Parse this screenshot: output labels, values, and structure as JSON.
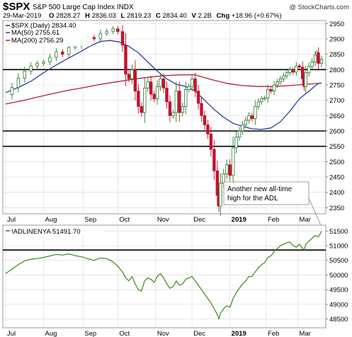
{
  "header": {
    "symbol": "$SPX",
    "name": "S&P 500 Large Cap Index",
    "exchange": "INDX",
    "date": "29-Mar-2019",
    "o_label": "O",
    "o_value": "2828.27",
    "h_label": "H",
    "h_value": "2836.03",
    "l_label": "L",
    "l_value": "2819.23",
    "c_label": "C",
    "c_value": "2834.40",
    "v_label": "V",
    "v_value": "2.2B",
    "chg_label": "Chg",
    "chg_value": "+18.96 (+0.67%)",
    "credit": "@ StockCharts.com"
  },
  "colors": {
    "up": "#2a7a2a",
    "down": "#c4122f",
    "ma50": "#2b3fa0",
    "ma200": "#b02040",
    "adl": "#3a8a1c",
    "hline": "#000000",
    "grid": "#d8d8d8"
  },
  "chart_data": [
    {
      "type": "candlestick",
      "series_label": "$SPX (Daily)",
      "series_value": "2834.40",
      "ylim": [
        2330,
        2960
      ],
      "yticks": [
        2350,
        2400,
        2450,
        2500,
        2550,
        2600,
        2650,
        2700,
        2750,
        2800,
        2850,
        2900,
        2950
      ],
      "xlim": [
        0,
        1
      ],
      "x_labels": [
        {
          "label": "Jul",
          "pos": 0.0
        },
        {
          "label": "Aug",
          "pos": 0.12
        },
        {
          "label": "Sep",
          "pos": 0.245
        },
        {
          "label": "Oct",
          "pos": 0.355
        },
        {
          "label": "Nov",
          "pos": 0.475
        },
        {
          "label": "Dec",
          "pos": 0.59
        },
        {
          "label": "2019",
          "pos": 0.71
        },
        {
          "label": "Feb",
          "pos": 0.825
        },
        {
          "label": "Mar",
          "pos": 0.925
        }
      ],
      "horizontal_lines": [
        2800,
        2600,
        2550
      ],
      "legend": [
        {
          "name": "MA(50)",
          "value": "2755.61",
          "color_key": "ma50"
        },
        {
          "name": "MA(200)",
          "value": "2756.29",
          "color_key": "ma200"
        }
      ],
      "ma50": [
        [
          0.0,
          2725
        ],
        [
          0.04,
          2742
        ],
        [
          0.08,
          2762
        ],
        [
          0.12,
          2790
        ],
        [
          0.16,
          2815
        ],
        [
          0.2,
          2838
        ],
        [
          0.24,
          2860
        ],
        [
          0.27,
          2878
        ],
        [
          0.3,
          2892
        ],
        [
          0.33,
          2895
        ],
        [
          0.36,
          2890
        ],
        [
          0.39,
          2876
        ],
        [
          0.42,
          2855
        ],
        [
          0.45,
          2825
        ],
        [
          0.48,
          2795
        ],
        [
          0.51,
          2770
        ],
        [
          0.54,
          2752
        ],
        [
          0.57,
          2745
        ],
        [
          0.6,
          2730
        ],
        [
          0.63,
          2700
        ],
        [
          0.66,
          2670
        ],
        [
          0.69,
          2645
        ],
        [
          0.72,
          2625
        ],
        [
          0.75,
          2615
        ],
        [
          0.78,
          2607
        ],
        [
          0.81,
          2605
        ],
        [
          0.84,
          2610
        ],
        [
          0.87,
          2630
        ],
        [
          0.9,
          2665
        ],
        [
          0.93,
          2705
        ],
        [
          0.96,
          2730
        ],
        [
          0.99,
          2755
        ],
        [
          1.0,
          2756
        ]
      ],
      "ma200": [
        [
          0.0,
          2688
        ],
        [
          0.05,
          2698
        ],
        [
          0.1,
          2710
        ],
        [
          0.15,
          2722
        ],
        [
          0.2,
          2733
        ],
        [
          0.25,
          2742
        ],
        [
          0.3,
          2752
        ],
        [
          0.35,
          2760
        ],
        [
          0.4,
          2768
        ],
        [
          0.45,
          2775
        ],
        [
          0.5,
          2780
        ],
        [
          0.55,
          2783
        ],
        [
          0.6,
          2783
        ],
        [
          0.65,
          2768
        ],
        [
          0.7,
          2755
        ],
        [
          0.75,
          2748
        ],
        [
          0.8,
          2745
        ],
        [
          0.85,
          2745
        ],
        [
          0.9,
          2748
        ],
        [
          0.95,
          2752
        ],
        [
          1.0,
          2756
        ]
      ],
      "close": [
        [
          0.0,
          2718
        ],
        [
          0.02,
          2742
        ],
        [
          0.04,
          2772
        ],
        [
          0.06,
          2795
        ],
        [
          0.08,
          2812
        ],
        [
          0.1,
          2820
        ],
        [
          0.12,
          2825
        ],
        [
          0.14,
          2840
        ],
        [
          0.16,
          2858
        ],
        [
          0.18,
          2850
        ],
        [
          0.2,
          2872
        ],
        [
          0.22,
          2878
        ],
        [
          0.24,
          2890
        ],
        [
          0.26,
          2905
        ],
        [
          0.28,
          2900
        ],
        [
          0.3,
          2918
        ],
        [
          0.32,
          2925
        ],
        [
          0.34,
          2933
        ],
        [
          0.355,
          2924
        ],
        [
          0.37,
          2880
        ],
        [
          0.38,
          2785
        ],
        [
          0.39,
          2770
        ],
        [
          0.4,
          2800
        ],
        [
          0.41,
          2730
        ],
        [
          0.42,
          2680
        ],
        [
          0.43,
          2660
        ],
        [
          0.44,
          2740
        ],
        [
          0.45,
          2760
        ],
        [
          0.46,
          2720
        ],
        [
          0.47,
          2705
        ],
        [
          0.48,
          2745
        ],
        [
          0.49,
          2770
        ],
        [
          0.5,
          2740
        ],
        [
          0.51,
          2695
        ],
        [
          0.52,
          2650
        ],
        [
          0.53,
          2660
        ],
        [
          0.54,
          2730
        ],
        [
          0.55,
          2660
        ],
        [
          0.56,
          2680
        ],
        [
          0.57,
          2735
        ],
        [
          0.58,
          2745
        ],
        [
          0.59,
          2770
        ],
        [
          0.6,
          2730
        ],
        [
          0.61,
          2690
        ],
        [
          0.62,
          2650
        ],
        [
          0.63,
          2620
        ],
        [
          0.64,
          2590
        ],
        [
          0.65,
          2540
        ],
        [
          0.66,
          2470
        ],
        [
          0.67,
          2390
        ],
        [
          0.675,
          2355
        ],
        [
          0.68,
          2430
        ],
        [
          0.69,
          2460
        ],
        [
          0.7,
          2490
        ],
        [
          0.71,
          2455
        ],
        [
          0.72,
          2545
        ],
        [
          0.73,
          2580
        ],
        [
          0.74,
          2600
        ],
        [
          0.75,
          2620
        ],
        [
          0.76,
          2635
        ],
        [
          0.77,
          2650
        ],
        [
          0.78,
          2640
        ],
        [
          0.79,
          2680
        ],
        [
          0.8,
          2695
        ],
        [
          0.81,
          2705
        ],
        [
          0.82,
          2708
        ],
        [
          0.83,
          2735
        ],
        [
          0.84,
          2730
        ],
        [
          0.85,
          2750
        ],
        [
          0.86,
          2760
        ],
        [
          0.87,
          2770
        ],
        [
          0.88,
          2780
        ],
        [
          0.89,
          2790
        ],
        [
          0.9,
          2800
        ],
        [
          0.91,
          2792
        ],
        [
          0.92,
          2812
        ],
        [
          0.93,
          2808
        ],
        [
          0.94,
          2770
        ],
        [
          0.945,
          2745
        ],
        [
          0.95,
          2790
        ],
        [
          0.96,
          2810
        ],
        [
          0.97,
          2825
        ],
        [
          0.98,
          2848
        ],
        [
          0.985,
          2855
        ],
        [
          0.99,
          2820
        ],
        [
          1.0,
          2834
        ]
      ]
    },
    {
      "type": "line",
      "series_label": "!ADLINENYA",
      "series_value": "51491.70",
      "ylim": [
        48200,
        51700
      ],
      "yticks": [
        48500,
        49000,
        49500,
        50000,
        50500,
        51000,
        51500
      ],
      "horizontal_lines": [
        50850
      ],
      "x_labels": [
        {
          "label": "Jul",
          "pos": 0.0
        },
        {
          "label": "Aug",
          "pos": 0.12
        },
        {
          "label": "Sep",
          "pos": 0.245
        },
        {
          "label": "Oct",
          "pos": 0.355
        },
        {
          "label": "Nov",
          "pos": 0.475
        },
        {
          "label": "Dec",
          "pos": 0.59
        },
        {
          "label": "2019",
          "pos": 0.71
        },
        {
          "label": "Feb",
          "pos": 0.825
        },
        {
          "label": "Mar",
          "pos": 0.925
        }
      ],
      "values": [
        [
          0.0,
          50050
        ],
        [
          0.02,
          50200
        ],
        [
          0.04,
          50350
        ],
        [
          0.06,
          50480
        ],
        [
          0.08,
          50540
        ],
        [
          0.1,
          50560
        ],
        [
          0.12,
          50600
        ],
        [
          0.14,
          50650
        ],
        [
          0.16,
          50700
        ],
        [
          0.18,
          50680
        ],
        [
          0.2,
          50720
        ],
        [
          0.22,
          50660
        ],
        [
          0.24,
          50620
        ],
        [
          0.26,
          50550
        ],
        [
          0.28,
          50500
        ],
        [
          0.3,
          50580
        ],
        [
          0.32,
          50560
        ],
        [
          0.34,
          50450
        ],
        [
          0.355,
          50300
        ],
        [
          0.37,
          50100
        ],
        [
          0.38,
          49900
        ],
        [
          0.39,
          49800
        ],
        [
          0.4,
          49950
        ],
        [
          0.41,
          49700
        ],
        [
          0.42,
          49500
        ],
        [
          0.43,
          49450
        ],
        [
          0.44,
          49800
        ],
        [
          0.45,
          49900
        ],
        [
          0.46,
          49850
        ],
        [
          0.47,
          49750
        ],
        [
          0.48,
          49950
        ],
        [
          0.49,
          50050
        ],
        [
          0.5,
          49900
        ],
        [
          0.51,
          49700
        ],
        [
          0.52,
          49550
        ],
        [
          0.53,
          49600
        ],
        [
          0.54,
          49800
        ],
        [
          0.55,
          49650
        ],
        [
          0.56,
          49700
        ],
        [
          0.57,
          49850
        ],
        [
          0.58,
          49900
        ],
        [
          0.59,
          49950
        ],
        [
          0.6,
          49800
        ],
        [
          0.61,
          49650
        ],
        [
          0.62,
          49500
        ],
        [
          0.63,
          49350
        ],
        [
          0.64,
          49200
        ],
        [
          0.65,
          49050
        ],
        [
          0.66,
          48850
        ],
        [
          0.67,
          48650
        ],
        [
          0.675,
          48500
        ],
        [
          0.68,
          48700
        ],
        [
          0.69,
          48850
        ],
        [
          0.7,
          48950
        ],
        [
          0.71,
          48900
        ],
        [
          0.72,
          49200
        ],
        [
          0.73,
          49400
        ],
        [
          0.74,
          49550
        ],
        [
          0.75,
          49700
        ],
        [
          0.76,
          49800
        ],
        [
          0.77,
          49950
        ],
        [
          0.78,
          49950
        ],
        [
          0.79,
          50100
        ],
        [
          0.8,
          50250
        ],
        [
          0.81,
          50350
        ],
        [
          0.82,
          50420
        ],
        [
          0.83,
          50600
        ],
        [
          0.84,
          50650
        ],
        [
          0.85,
          50800
        ],
        [
          0.86,
          50900
        ],
        [
          0.87,
          51000
        ],
        [
          0.88,
          51050
        ],
        [
          0.89,
          51100
        ],
        [
          0.9,
          51120
        ],
        [
          0.91,
          51000
        ],
        [
          0.92,
          50950
        ],
        [
          0.93,
          51050
        ],
        [
          0.94,
          50900
        ],
        [
          0.945,
          50850
        ],
        [
          0.95,
          51050
        ],
        [
          0.96,
          51150
        ],
        [
          0.97,
          51250
        ],
        [
          0.98,
          51350
        ],
        [
          0.99,
          51300
        ],
        [
          1.0,
          51490
        ]
      ]
    }
  ],
  "annotation": {
    "line1": "Another new all-time",
    "line2": "high for the ADL"
  }
}
